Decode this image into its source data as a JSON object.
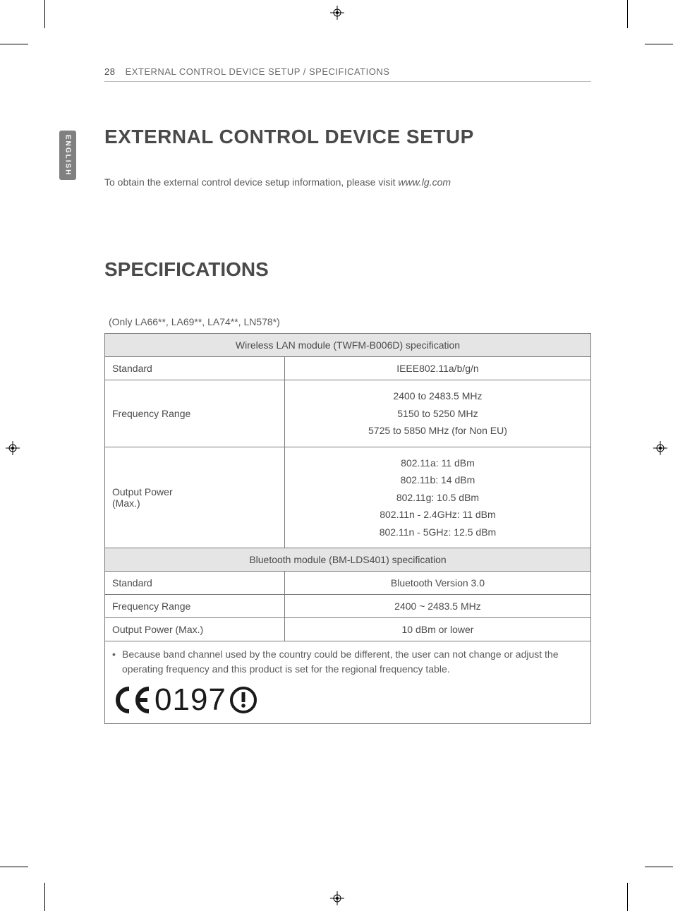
{
  "page_number": "28",
  "header_text": "EXTERNAL CONTROL DEVICE SETUP / SPECIFICATIONS",
  "language_tab": "ENGLISH",
  "section1_title": "EXTERNAL CONTROL DEVICE SETUP",
  "section1_intro_a": "To obtain the external control device setup information, please visit ",
  "section1_intro_url": "www.lg.com",
  "section2_title": "SPECIFICATIONS",
  "models_note": "(Only LA66**, LA69**, LA74**, LN578*)",
  "table": {
    "wlan_header": "Wireless LAN module (TWFM-B006D) specification",
    "rows_wlan": [
      {
        "label": "Standard",
        "value": "IEEE802.11a/b/g/n"
      },
      {
        "label": "Frequency Range",
        "value": "2400 to 2483.5 MHz\n5150 to 5250 MHz\n5725 to 5850 MHz (for Non EU)"
      },
      {
        "label": "Output Power\n(Max.)",
        "value": "802.11a: 11 dBm\n802.11b: 14 dBm\n802.11g: 10.5 dBm\n802.11n - 2.4GHz: 11 dBm\n802.11n - 5GHz: 12.5 dBm"
      }
    ],
    "bt_header": "Bluetooth module (BM-LDS401) specification",
    "rows_bt": [
      {
        "label": "Standard",
        "value": "Bluetooth Version 3.0"
      },
      {
        "label": "Frequency Range",
        "value": "2400 ~ 2483.5 MHz"
      },
      {
        "label": "Output Power (Max.)",
        "value": "10 dBm or lower"
      }
    ],
    "footnote": "Because band channel used by the country could be different, the user can not change or adjust the operating frequency and this product is set for the regional frequency table.",
    "ce_number": "0197"
  },
  "colors": {
    "text": "#4a4a4a",
    "header_bg": "#e5e5e5",
    "border": "#7a7a7a",
    "tab_bg": "#808080"
  }
}
